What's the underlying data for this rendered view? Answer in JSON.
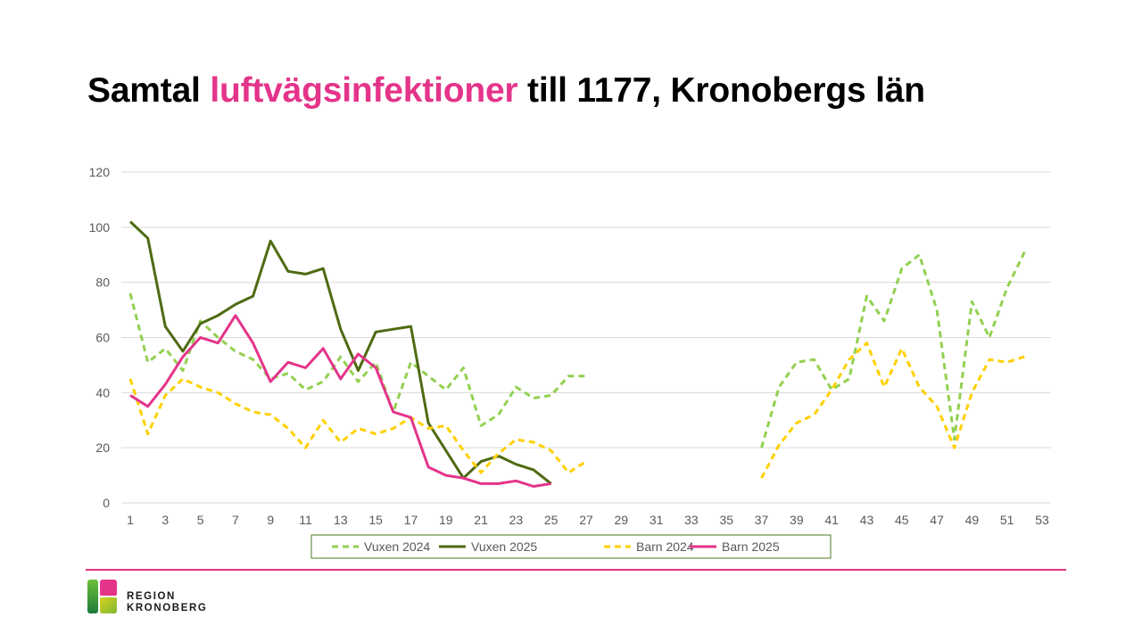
{
  "title": {
    "part1": "Samtal ",
    "highlight": "luftvägsinfektioner",
    "part2": " till 1177, Kronobergs län"
  },
  "colors": {
    "highlight": "#E4348A",
    "divider": "#E4348A",
    "grid": "#D9D9D9",
    "axis_text": "#595959",
    "legend_border": "#4E7A1E"
  },
  "logo": {
    "line1": "REGION",
    "line2": "KRONOBERG",
    "icon": "region-kronoberg-logo-icon"
  },
  "chart_data": {
    "type": "line",
    "xlabel": "",
    "ylabel": "",
    "x": [
      1,
      2,
      3,
      4,
      5,
      6,
      7,
      8,
      9,
      10,
      11,
      12,
      13,
      14,
      15,
      16,
      17,
      18,
      19,
      20,
      21,
      22,
      23,
      24,
      25,
      26,
      27,
      28,
      29,
      30,
      31,
      32,
      33,
      34,
      35,
      36,
      37,
      38,
      39,
      40,
      41,
      42,
      43,
      44,
      45,
      46,
      47,
      48,
      49,
      50,
      51,
      52,
      53
    ],
    "x_tick_labels": [
      "1",
      "3",
      "5",
      "7",
      "9",
      "11",
      "13",
      "15",
      "17",
      "19",
      "21",
      "23",
      "25",
      "27",
      "29",
      "31",
      "33",
      "35",
      "37",
      "39",
      "41",
      "43",
      "45",
      "47",
      "49",
      "51",
      "53"
    ],
    "ylim": [
      0,
      120
    ],
    "y_ticks": [
      0,
      20,
      40,
      60,
      80,
      100,
      120
    ],
    "grid": true,
    "legend_position": "bottom",
    "series": [
      {
        "name": "Vuxen 2024",
        "color": "#92D050",
        "dashed": true,
        "values": [
          76,
          51,
          56,
          48,
          66,
          60,
          55,
          52,
          45,
          47,
          41,
          44,
          53,
          44,
          51,
          33,
          51,
          46,
          41,
          49,
          28,
          32,
          42,
          38,
          39,
          46,
          46,
          null,
          null,
          null,
          null,
          null,
          null,
          null,
          null,
          null,
          20,
          42,
          51,
          52,
          41,
          45,
          75,
          66,
          85,
          90,
          70,
          23,
          73,
          60,
          78,
          91,
          null
        ]
      },
      {
        "name": "Vuxen 2025",
        "color": "#4E6B12",
        "dashed": false,
        "values": [
          102,
          96,
          64,
          55,
          65,
          68,
          72,
          75,
          95,
          84,
          83,
          85,
          63,
          48,
          62,
          63,
          64,
          29,
          19,
          9,
          15,
          17,
          14,
          12,
          7,
          null,
          null,
          null,
          null,
          null,
          null,
          null,
          null,
          null,
          null,
          null,
          null,
          null,
          null,
          null,
          null,
          null,
          null,
          null,
          null,
          null,
          null,
          null,
          null,
          null,
          null,
          null,
          null
        ]
      },
      {
        "name": "Barn 2024",
        "color": "#FFD000",
        "dashed": true,
        "values": [
          45,
          25,
          39,
          45,
          42,
          40,
          36,
          33,
          32,
          27,
          20,
          30,
          22,
          27,
          25,
          27,
          31,
          27,
          28,
          19,
          11,
          18,
          23,
          22,
          19,
          11,
          15,
          null,
          null,
          null,
          null,
          null,
          null,
          null,
          null,
          null,
          9,
          21,
          29,
          32,
          41,
          52,
          58,
          42,
          56,
          42,
          35,
          20,
          40,
          52,
          51,
          53,
          null
        ]
      },
      {
        "name": "Barn 2025",
        "color": "#E4348A",
        "dashed": false,
        "values": [
          39,
          35,
          43,
          53,
          60,
          58,
          68,
          58,
          44,
          51,
          49,
          56,
          45,
          54,
          49,
          33,
          31,
          13,
          10,
          9,
          7,
          7,
          8,
          6,
          7,
          null,
          null,
          null,
          null,
          null,
          null,
          null,
          null,
          null,
          null,
          null,
          null,
          null,
          null,
          null,
          null,
          null,
          null,
          null,
          null,
          null,
          null,
          null,
          null,
          null,
          null,
          null,
          null
        ]
      }
    ]
  }
}
